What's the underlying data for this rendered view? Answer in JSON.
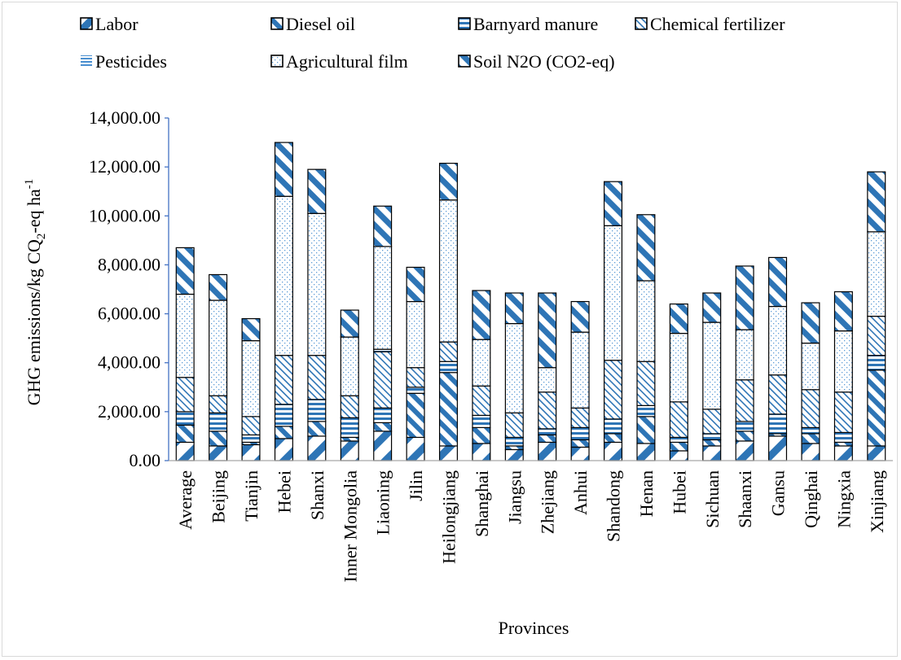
{
  "chart_data": {
    "type": "bar",
    "stacked": true,
    "title": "",
    "xlabel": "Provinces",
    "ylabel": {
      "main": "GHG emissions/kg CQ",
      "sub": "2",
      "mid": "-eq ha",
      "sup": "-1"
    },
    "ylim": [
      0,
      14000
    ],
    "y_ticks": [
      "0.00",
      "2,000.00",
      "4,000.00",
      "6,000.00",
      "8,000.00",
      "10,000.00",
      "12,000.00",
      "14,000.00"
    ],
    "grid": false,
    "legend_position": "top",
    "categories": [
      "Average",
      "Beijing",
      "Tianjin",
      "Hebei",
      "Shanxi",
      "Inner Mongolia",
      "Liaoning",
      "Jilin",
      "Heilongjiang",
      "Shanghai",
      "Jiangsu",
      "Zhejiang",
      "Anhui",
      "Shandong",
      "Henan",
      "Hubei",
      "Sichuan",
      "Shaanxi",
      "Gansu",
      "Qinghai",
      "Ningxia",
      "Xinjiang"
    ],
    "series": [
      {
        "name": "Labor",
        "pattern": "labor",
        "values": [
          750,
          600,
          650,
          900,
          1000,
          800,
          1200,
          950,
          600,
          700,
          450,
          750,
          550,
          750,
          700,
          400,
          600,
          800,
          1000,
          700,
          600,
          600
        ]
      },
      {
        "name": "Diesel oil",
        "pattern": "diesel",
        "values": [
          700,
          600,
          100,
          500,
          600,
          150,
          350,
          1800,
          3000,
          650,
          150,
          300,
          300,
          350,
          1100,
          350,
          250,
          400,
          100,
          400,
          150,
          3100
        ]
      },
      {
        "name": "Barnyard manure",
        "pattern": "manure",
        "values": [
          550,
          750,
          300,
          900,
          900,
          800,
          600,
          250,
          450,
          500,
          350,
          250,
          500,
          600,
          450,
          200,
          250,
          400,
          800,
          250,
          400,
          600
        ]
      },
      {
        "name": "Chemical fertilizer",
        "pattern": "fertilizer",
        "values": [
          1400,
          700,
          750,
          2000,
          1800,
          900,
          2300,
          800,
          800,
          1200,
          1000,
          1500,
          800,
          2400,
          1800,
          1450,
          1000,
          1700,
          1600,
          1550,
          1650,
          1600
        ]
      },
      {
        "name": "Pesticides",
        "pattern": "pesticides",
        "values": [
          0,
          0,
          0,
          0,
          0,
          0,
          100,
          0,
          0,
          0,
          0,
          0,
          0,
          0,
          0,
          0,
          0,
          0,
          0,
          0,
          0,
          0
        ]
      },
      {
        "name": "Agricultural film",
        "pattern": "film",
        "values": [
          3400,
          3900,
          3100,
          6500,
          5800,
          2400,
          4200,
          2700,
          5800,
          1900,
          3650,
          1000,
          3100,
          5500,
          3300,
          2800,
          3550,
          2050,
          2800,
          1900,
          2500,
          3450
        ]
      },
      {
        "name": "Soil N2O (CO2-eq)",
        "pattern": "n2o",
        "values": [
          1900,
          1050,
          900,
          2200,
          1800,
          1100,
          1650,
          1400,
          1500,
          2000,
          1250,
          3050,
          1250,
          1800,
          2700,
          1200,
          1200,
          2600,
          2000,
          1650,
          1600,
          2450
        ]
      }
    ]
  }
}
